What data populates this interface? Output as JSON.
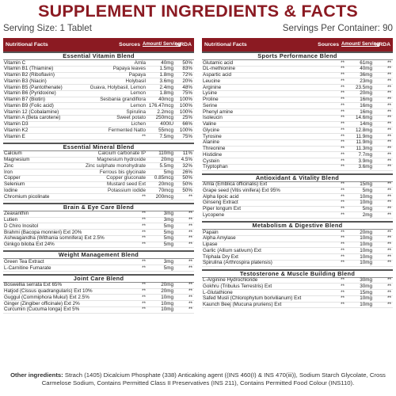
{
  "title": "SUPPLEMENT INGREDIENTS & FACTS",
  "serving_size": "Serving Size: 1 Tablet",
  "servings_per_container": "Servings Per Container: 90",
  "header": {
    "name": "Nutritional Facts",
    "sources": "Sources",
    "amount": "Amount/ Serving",
    "rda": "%RDA"
  },
  "left_blocks": [
    {
      "title": "Essential Vitamin Blend",
      "rows": [
        [
          "Vitamin C",
          "Amla",
          "40mg",
          "50%"
        ],
        [
          "Vitamin B1 (Thiamine)",
          "Papaya leaves",
          "1.5mg",
          "83%"
        ],
        [
          "Vitamin B2 (Riboflavin)",
          "Papaya",
          "1.8mg",
          "72%"
        ],
        [
          "Vitamin B3 (Niacin)",
          "Holybasil",
          "3.6mg",
          "20%"
        ],
        [
          "Vitamin B5 (Pantothenate)",
          "Guava, Holybasil, Lemon",
          "2.4mg",
          "48%"
        ],
        [
          "Vitamin B6 (Pyridoxine)",
          "Lemon",
          "1.8mg",
          "75%"
        ],
        [
          "Vitamin B7 (Biotin)",
          "Sesbania grandiflora",
          "40mcg",
          "100%"
        ],
        [
          "Vitamin B9 (Folic acid)",
          "Lemon",
          "176.47mcg",
          "100%"
        ],
        [
          "Vitamin 12 (Cobalamine)",
          "Spirulina",
          "2.2mcg",
          "100%"
        ],
        [
          "Vitamin A (Beta carotene)",
          "Sweet potato",
          "250mcg",
          "25%"
        ],
        [
          "Vitamin D3",
          "Lichen",
          "400IU",
          "66%"
        ],
        [
          "Vitamin K2",
          "Fermented Natto",
          "55mcg",
          "100%"
        ],
        [
          "Vitamin E",
          "**",
          "7.5mg",
          "75%"
        ]
      ]
    },
    {
      "title": "Essential Mineral Blend",
      "rows": [
        [
          "Calcium",
          "Calcium carbonate IP",
          "110mg",
          "11%"
        ],
        [
          "Magnesium",
          "Magnesium hydroxide",
          "20mg",
          "4.5%"
        ],
        [
          "Zinc",
          "Zinc sulphate monohydrate",
          "5.5mg",
          "32%"
        ],
        [
          "Iron",
          "Ferrous bis glycinate",
          "5mg",
          "26%"
        ],
        [
          "Copper",
          "Copper gluconate",
          "0.85mcg",
          "50%"
        ],
        [
          "Selenium",
          "Mustard seed Ext",
          "20mcg",
          "50%"
        ],
        [
          "Iodine",
          "Potassium iodide",
          "70mcg",
          "50%"
        ],
        [
          "Chromium picolinate",
          "**",
          "200mcg",
          "**"
        ]
      ]
    },
    {
      "title": "Brain & Eye Care Blend",
      "rows": [
        [
          "Zeaxanthin",
          "**",
          "3mg",
          "**"
        ],
        [
          "Lutien",
          "**",
          "3mg",
          "**"
        ],
        [
          "D Chiro Inositol",
          "**",
          "5mg",
          "**"
        ],
        [
          "Brahmi (Bacopa monnieri) Ext 20%",
          "**",
          "5mg",
          "**"
        ],
        [
          "Ashwagandha (Withania somnifera) Ext 2.5%",
          "**",
          "5mg",
          "**"
        ],
        [
          "Ginkgo biloba Ext 24%",
          "**",
          "5mg",
          "**"
        ]
      ]
    },
    {
      "title": "Weight Management Blend",
      "rows": [
        [
          "Green Tea Extract",
          "**",
          "3mg",
          "**"
        ],
        [
          "L-Carnitine Fumarate",
          "**",
          "5mg",
          "**"
        ]
      ]
    },
    {
      "title": "Joint Care Blend",
      "rows": [
        [
          "Boswellia serrata Ext 65%",
          "**",
          "20mg",
          "**"
        ],
        [
          "Hatjod (Cissus quadrangularis) Ext 10%",
          "**",
          "20mg",
          "**"
        ],
        [
          "Guggul (Commiphora Mukul) Ext 2.5%",
          "**",
          "10mg",
          "**"
        ],
        [
          "Ginger (Zingiber officinale) Ext 2%",
          "**",
          "10mg",
          "**"
        ],
        [
          "Curcumin (Cucuma longa) Ext 5%",
          "**",
          "10mg",
          "**"
        ]
      ]
    }
  ],
  "right_blocks": [
    {
      "title": "Sports Performance Blend",
      "rows": [
        [
          "Glutamic acid",
          "**",
          "61mg",
          "**"
        ],
        [
          "DL-methionine",
          "**",
          "40mg",
          "**"
        ],
        [
          "Aspartic acid",
          "**",
          "36mg",
          "**"
        ],
        [
          "Leucine",
          "**",
          "23mg",
          "**"
        ],
        [
          "Arginine",
          "**",
          "23.5mg",
          "**"
        ],
        [
          "Lysine",
          "**",
          "20mg",
          "**"
        ],
        [
          "Proline",
          "**",
          "16mg",
          "**"
        ],
        [
          "Serine",
          "**",
          "16mg",
          "**"
        ],
        [
          "Phenyl amine",
          "**",
          "16mg",
          "**"
        ],
        [
          "Isoleucin",
          "**",
          "14.6mg",
          "**"
        ],
        [
          "Valine",
          "**",
          "14mg",
          "**"
        ],
        [
          "Glycine",
          "**",
          "12.8mg",
          "**"
        ],
        [
          "Tyrosine",
          "**",
          "11.9mg",
          "**"
        ],
        [
          "Alanine",
          "**",
          "11.9mg",
          "**"
        ],
        [
          "Threonine",
          "**",
          "11.3mg",
          "**"
        ],
        [
          "Histidine",
          "**",
          "7.7mg",
          "**"
        ],
        [
          "Cystein",
          "**",
          "3.9mg",
          "**"
        ],
        [
          "Tryptophan",
          "**",
          "3.6mg",
          "**"
        ]
      ]
    },
    {
      "title": "Antioxidant & Vitality Blend",
      "rows": [
        [
          "Amla (Emblica officinalis) Ext",
          "**",
          "15mg",
          "**"
        ],
        [
          "Grape seed (Vitis vinifera) Ext 95%",
          "**",
          "5mg",
          "**"
        ],
        [
          "Alpha lipoic acid",
          "**",
          "10mg",
          "**"
        ],
        [
          "Ginseng Extract",
          "**",
          "10mg",
          "**"
        ],
        [
          "Piper longum Ext",
          "**",
          "5mg",
          "**"
        ],
        [
          "Lycopene",
          "**",
          "2mg",
          "**"
        ]
      ]
    },
    {
      "title": "Metabolism & Digestive Blend",
      "rows": [
        [
          "Papain",
          "**",
          "20mg",
          "**"
        ],
        [
          "Alpha Amylase",
          "**",
          "10mg",
          "**"
        ],
        [
          "Lipase",
          "**",
          "10mg",
          "**"
        ],
        [
          "Garlic (Allium sativum) Ext",
          "**",
          "10mg",
          "**"
        ],
        [
          "Triphala Dry Ext",
          "**",
          "10mg",
          "**"
        ],
        [
          "Spirulina (Arthrospira platensis)",
          "**",
          "10mg",
          "**"
        ]
      ]
    },
    {
      "title": "Testosterone & Muscle Building Blend",
      "rows": [
        [
          "L-Arginine Hydrochloride",
          "**",
          "30mg",
          "**"
        ],
        [
          "Gokhru (Tribulus Terrestris) Ext",
          "**",
          "30mg",
          "**"
        ],
        [
          "L-Glutathione",
          "**",
          "15mg",
          "**"
        ],
        [
          "Safed Musli (Chlorophytum borivilianum) Ext",
          "**",
          "10mg",
          "**"
        ],
        [
          "Kaunch Beej (Mucuna pruriens) Ext",
          "**",
          "10mg",
          "**"
        ]
      ]
    }
  ],
  "other_ingredients": {
    "label": "Other ingredients:",
    "text": "Strach (1405) Dicalcium Phosphate (338) Anticaking agent ((INS 460(I) & INS 470(iii)), Sodium Starch Glycolate, Cross Carmelose Sodium, Contains Permitted Class II Preservatives (INS 211), Contains Permitted Food Colour (INS110)."
  },
  "colors": {
    "accent": "#8b1a22"
  }
}
